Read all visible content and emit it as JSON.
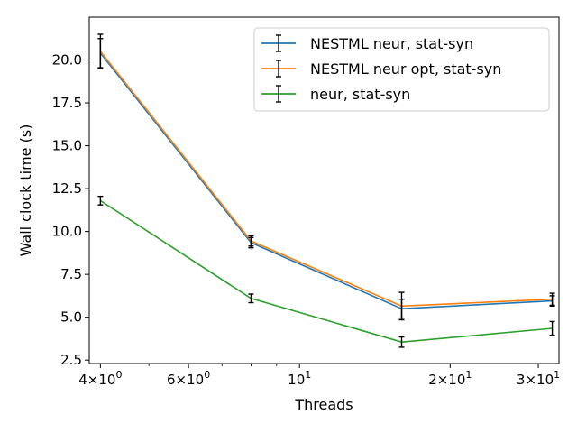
{
  "chart_data": {
    "type": "line",
    "xlabel": "Threads",
    "ylabel": "Wall clock time (s)",
    "xscale": "log",
    "xlim": [
      3.8,
      33
    ],
    "ylim": [
      2.3,
      22.5
    ],
    "legend_position": "top-right",
    "grid": false,
    "x": [
      4,
      8,
      16,
      32
    ],
    "x_ticks": [
      {
        "value": 4,
        "base": "4×10",
        "exp": "0"
      },
      {
        "value": 6,
        "base": "6×10",
        "exp": "0"
      },
      {
        "value": 10,
        "base": "10",
        "exp": "1"
      },
      {
        "value": 20,
        "base": "2×10",
        "exp": "1"
      },
      {
        "value": 30,
        "base": "3×10",
        "exp": "1"
      }
    ],
    "x_minor_ticks": [
      5,
      7,
      8,
      9
    ],
    "y_ticks": [
      "2.5",
      "5.0",
      "7.5",
      "10.0",
      "12.5",
      "15.0",
      "17.5",
      "20.0"
    ],
    "series": [
      {
        "name": "NESTML neur, stat-syn",
        "color": "#1f77b4",
        "values": [
          20.4,
          9.35,
          5.5,
          5.95
        ],
        "errors": [
          0.85,
          0.3,
          0.55,
          0.3
        ]
      },
      {
        "name": "NESTML neur opt, stat-syn",
        "color": "#ff7f0e",
        "values": [
          20.5,
          9.45,
          5.65,
          6.05
        ],
        "errors": [
          1.0,
          0.3,
          0.8,
          0.35
        ]
      },
      {
        "name": "neur, stat-syn",
        "color": "#2ca02c",
        "values": [
          11.8,
          6.1,
          3.55,
          4.35
        ],
        "errors": [
          0.25,
          0.25,
          0.3,
          0.4
        ]
      }
    ]
  }
}
